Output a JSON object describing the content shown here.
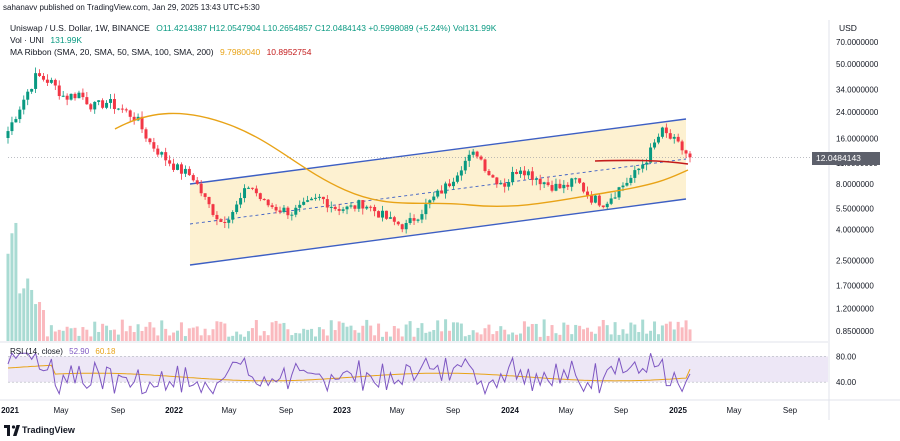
{
  "caption": "sahanavv published on TradingView.com, Jan 29, 2025 13:43 UTC+5:30",
  "legend": {
    "symbol": "Uniswap / U.S. Dollar, 1W, BINANCE",
    "open": "O11.4214387",
    "high": "H12.0547904",
    "low": "L10.2654857",
    "close": "C12.0484143",
    "change": "+0.5998089 (+5.24%)",
    "volume": "Vol131.99K",
    "vol_label": "Vol · UNI",
    "vol_value": "131.99K",
    "ma_label": "MA Ribbon (SMA, 20, SMA, 50, SMA, 100, SMA, 200)",
    "ma_value_1": "9.7980040",
    "ma_value_2": "10.8952754",
    "rsi_label": "RSI (14, close)",
    "rsi_value": "52.90",
    "rsi_ma_value": "60.18"
  },
  "axis": {
    "currency": "USD",
    "price_labels": [
      "70.0000000",
      "50.0000000",
      "34.0000000",
      "24.0000000",
      "16.0000000",
      "11.0000000",
      "8.0000000",
      "5.5000000",
      "4.0000000",
      "2.5000000",
      "1.7000000",
      "1.2000000",
      "0.8500000"
    ],
    "current_price": "12.0484143",
    "rsi_labels": [
      "80.00",
      "40.00"
    ],
    "time_labels": [
      "2021",
      "May",
      "Sep",
      "2022",
      "May",
      "Sep",
      "2023",
      "May",
      "Sep",
      "2024",
      "May",
      "Sep",
      "2025",
      "May",
      "Sep"
    ]
  },
  "footer": {
    "brand": "TradingView"
  },
  "colors": {
    "up": "#089981",
    "down": "#f23645",
    "channel": "#3d5fc4",
    "channel_fill": "#fdf0cc",
    "ma20": "#e8a317",
    "ma50": "#c41b1b",
    "rsi": "#7e57c2",
    "rsi_band": "#ede7f6",
    "icon": "tradingview-logo-icon"
  },
  "chart_data": {
    "type": "candlestick",
    "timeframe": "1W",
    "ylim": [
      0.85,
      70
    ],
    "y_scale": "log",
    "x": [
      "2021",
      "May",
      "Sep",
      "2022",
      "May",
      "Sep",
      "2023",
      "May",
      "Sep",
      "2024",
      "May",
      "Sep",
      "2025",
      "May",
      "Sep"
    ],
    "close_path": [
      18,
      28,
      42,
      38,
      30,
      32,
      26,
      28,
      25,
      22,
      15,
      12,
      10,
      9,
      6,
      4.5,
      5.5,
      8,
      6,
      5.5,
      5.2,
      5.8,
      6.5,
      5.6,
      5.5,
      6,
      5.2,
      4.5,
      4.2,
      5.2,
      6.5,
      8,
      11,
      13,
      9,
      8,
      10.5,
      9,
      8,
      7.5,
      8.5,
      6.5,
      6,
      7.5,
      9,
      12,
      18,
      15,
      12
    ],
    "current_close": 12.0484143,
    "rsi_last": 52.9,
    "rsi_ma_last": 60.18,
    "rsi_levels": [
      80,
      40
    ]
  }
}
